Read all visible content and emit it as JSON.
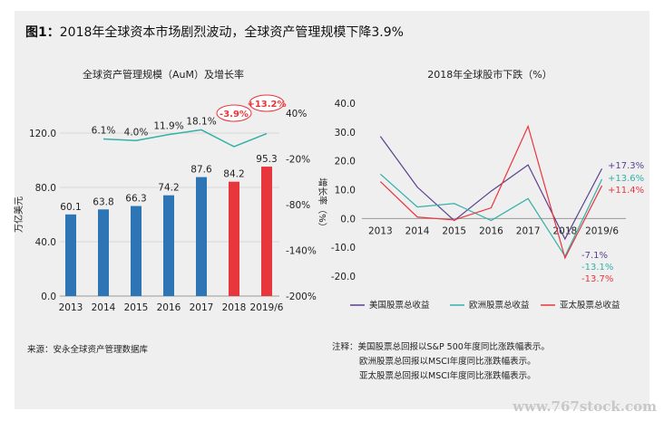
{
  "figure": {
    "title_prefix": "图1：",
    "title": "2018年全球资本市场剧烈波动，全球资产管理规模下降3.9%",
    "source": "来源：安永全球资产管理数据库",
    "notes": [
      "注释：美国股票总回报以S&P 500年度同比涨跌幅表示。",
      "欧洲股票总回报以MSCI年度同比涨跌幅表示。",
      "亚太股票总回报以MSCI年度同比涨跌幅表示。"
    ],
    "watermark": "www.767stock.com"
  },
  "chart_data": [
    {
      "type": "bar",
      "title": "全球资产管理规模（AuM）及增长率",
      "categories": [
        "2013",
        "2014",
        "2015",
        "2016",
        "2017",
        "2018",
        "2019/6"
      ],
      "ylabel": "万亿美元",
      "ylim": [
        0,
        120
      ],
      "yticks": [
        "0.0",
        "40.0",
        "80.0",
        "120.0"
      ],
      "series": [
        {
          "values": [
            60.1,
            63.8,
            66.3,
            74.2,
            87.6,
            84.2,
            95.3
          ],
          "value_labels": [
            "60.1",
            "63.8",
            "66.3",
            "74.2",
            "87.6",
            "84.2",
            "95.3"
          ],
          "colors": [
            "#2e75b6",
            "#2e75b6",
            "#2e75b6",
            "#2e75b6",
            "#2e75b6",
            "#e8363d",
            "#e8363d"
          ]
        }
      ],
      "secondary_axis": {
        "label": "增长率（%）",
        "ylim": [
          -200,
          40
        ],
        "yticks": [
          "40%",
          "-20%",
          "-80%",
          "-140%",
          "-200%"
        ],
        "line_color": "#33b0a8",
        "values": [
          6.1,
          4.0,
          11.9,
          18.1,
          -3.9,
          13.2
        ],
        "value_labels": [
          "6.1%",
          "4.0%",
          "11.9%",
          "18.1%",
          "-3.9%",
          "+13.2%"
        ],
        "highlighted_labels": [
          "-3.9%",
          "+13.2%"
        ],
        "highlight_color": "#e8363d"
      }
    },
    {
      "type": "line",
      "title": "2018年全球股市下跌（%）",
      "x": [
        "2013",
        "2014",
        "2015",
        "2016",
        "2017",
        "2018",
        "2019/6"
      ],
      "ylim": [
        -20,
        40
      ],
      "yticks": [
        "40.0",
        "30.0",
        "20.0",
        "10.0",
        "0.0",
        "-10.0",
        "-20.0"
      ],
      "series": [
        {
          "name": "美国股票总收益",
          "color": "#5b3f8f",
          "values": [
            28.5,
            10.9,
            -0.7,
            9.5,
            18.6,
            -7.1,
            17.3
          ],
          "end_labels": [
            "-7.1%",
            "+17.3%"
          ]
        },
        {
          "name": "欧洲股票总收益",
          "color": "#33b0a8",
          "values": [
            15.4,
            4.0,
            5.2,
            -0.7,
            6.9,
            -13.1,
            13.6
          ],
          "end_labels": [
            "-13.1%",
            "+13.6%"
          ]
        },
        {
          "name": "亚太股票总收益",
          "color": "#e8363d",
          "values": [
            12.8,
            0.5,
            -0.5,
            3.7,
            32.0,
            -13.7,
            11.4
          ],
          "end_labels": [
            "-13.7%",
            "+11.4%"
          ]
        }
      ]
    }
  ]
}
